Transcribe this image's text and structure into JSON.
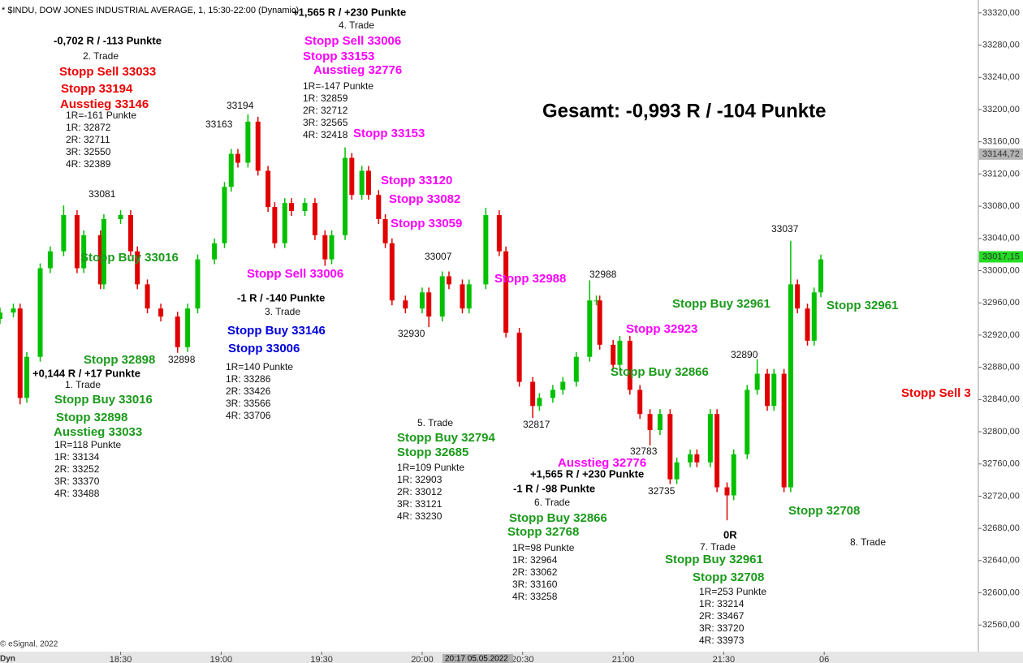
{
  "header": "* $INDU, DOW JONES INDUSTRIAL AVERAGE, 1, 15:30-22:00 (Dynamic)",
  "summary": "Gesamt: -0,993 R / -104 Punkte",
  "copyright": "© eSignal, 2022",
  "toolbar_label": "Dyn",
  "crosshair_label": "20:17 05.05.2022",
  "chart_data": {
    "type": "candlestick",
    "up_color": "#00c000",
    "down_color": "#e00000",
    "grid": false,
    "xlim": [
      1074,
      1366
    ],
    "xticks": [
      {
        "value": 1110,
        "label": "18:30"
      },
      {
        "value": 1140,
        "label": "19:00"
      },
      {
        "value": 1170,
        "label": "19:30"
      },
      {
        "value": 1200,
        "label": "20:00"
      },
      {
        "value": 1230,
        "label": "20:30"
      },
      {
        "value": 1260,
        "label": "21:00"
      },
      {
        "value": 1290,
        "label": "21:30"
      },
      {
        "value": 1320,
        "label": "06"
      }
    ],
    "ylim": [
      32527,
      33336
    ],
    "yticks": [
      {
        "value": 33320,
        "label": "33320,00"
      },
      {
        "value": 33280,
        "label": "33280,00"
      },
      {
        "value": 33240,
        "label": "33240,00"
      },
      {
        "value": 33200,
        "label": "33200,00"
      },
      {
        "value": 33160,
        "label": "33160,00"
      },
      {
        "value": 33120,
        "label": "33120,00"
      },
      {
        "value": 33080,
        "label": "33080,00"
      },
      {
        "value": 33040,
        "label": "33040,00"
      },
      {
        "value": 33000,
        "label": "33000,00"
      },
      {
        "value": 32960,
        "label": "32960,00"
      },
      {
        "value": 32920,
        "label": "32920,00"
      },
      {
        "value": 32880,
        "label": "32880,00"
      },
      {
        "value": 32840,
        "label": "32840,00"
      },
      {
        "value": 32800,
        "label": "32800,00"
      },
      {
        "value": 32760,
        "label": "32760,00"
      },
      {
        "value": 32720,
        "label": "32720,00"
      },
      {
        "value": 32680,
        "label": "32680,00"
      },
      {
        "value": 32640,
        "label": "32640,00"
      },
      {
        "value": 32600,
        "label": "32600,00"
      },
      {
        "value": 32560,
        "label": "32560,00"
      }
    ],
    "price_markers": [
      {
        "value": 33144.72,
        "label": "33144,72",
        "color": "#b4b4b4"
      },
      {
        "value": 33017.15,
        "label": "33017,15",
        "color": "#22dd22"
      }
    ],
    "x": [
      1074,
      1078,
      1080,
      1082,
      1086,
      1089,
      1093,
      1097,
      1099,
      1104,
      1105,
      1110,
      1113,
      1115,
      1118,
      1122,
      1127,
      1130,
      1133,
      1138,
      1141,
      1143,
      1145,
      1148,
      1151,
      1154,
      1156,
      1159,
      1161,
      1165,
      1168,
      1171,
      1173,
      1177,
      1179,
      1182,
      1184,
      1187,
      1189,
      1191,
      1195,
      1200,
      1202,
      1206,
      1208,
      1212,
      1214,
      1219,
      1223,
      1225,
      1229,
      1233,
      1235,
      1239,
      1242,
      1246,
      1250,
      1252,
      1253,
      1257,
      1259,
      1262,
      1265,
      1268,
      1271,
      1274,
      1276,
      1280,
      1282,
      1286,
      1288,
      1291,
      1293,
      1297,
      1300,
      1303,
      1305,
      1308,
      1310,
      1312,
      1315,
      1317,
      1319
    ],
    "open": [
      32940,
      32948,
      32953,
      32842,
      32893,
      33003,
      33024,
      33069,
      33003,
      33044,
      32983,
      33064,
      33069,
      33024,
      32983,
      32953,
      32943,
      32905,
      32953,
      33014,
      33034,
      33104,
      33145,
      33134,
      33185,
      33124,
      33079,
      33034,
      33084,
      33074,
      33084,
      33044,
      33014,
      33044,
      33140,
      33094,
      33124,
      33094,
      33064,
      33034,
      32963,
      32953,
      32973,
      32943,
      32993,
      32983,
      32953,
      32983,
      33069,
      33024,
      32923,
      32862,
      32832,
      32842,
      32852,
      32862,
      32893,
      32963,
      32963,
      32908,
      32883,
      32913,
      32852,
      32822,
      32802,
      32822,
      32741,
      32762,
      32772,
      32762,
      32822,
      32731,
      32721,
      32772,
      32852,
      32872,
      32832,
      32872,
      32731,
      32983,
      32953,
      32913,
      32973
    ],
    "high": [
      32954,
      32959,
      32959,
      32899,
      33009,
      33030,
      33081,
      33075,
      33050,
      33050,
      33070,
      33075,
      33075,
      33030,
      32989,
      32959,
      32949,
      32959,
      33020,
      33040,
      33110,
      33151,
      33151,
      33194,
      33191,
      33130,
      33085,
      33090,
      33090,
      33090,
      33090,
      33050,
      33050,
      33153,
      33146,
      33130,
      33130,
      33100,
      33070,
      33040,
      32969,
      32979,
      32979,
      32999,
      32999,
      32989,
      32989,
      33078,
      33075,
      33030,
      32929,
      32868,
      32848,
      32858,
      32868,
      32899,
      32988,
      32969,
      32969,
      32914,
      32919,
      32919,
      32858,
      32828,
      32828,
      32828,
      32768,
      32778,
      32778,
      32828,
      32828,
      32737,
      32778,
      32858,
      32890,
      32878,
      32878,
      32878,
      33037,
      32989,
      32959,
      32979,
      33020
    ],
    "low": [
      32934,
      32942,
      32834,
      32836,
      32887,
      32997,
      33018,
      32997,
      32997,
      32977,
      32977,
      33058,
      33018,
      32977,
      32947,
      32937,
      32898,
      32899,
      32947,
      33008,
      33028,
      33098,
      33128,
      33128,
      33118,
      33073,
      33028,
      33028,
      33068,
      33068,
      33038,
      33006,
      33008,
      33038,
      33088,
      33088,
      33088,
      33058,
      33028,
      32957,
      32947,
      32947,
      32930,
      32937,
      32977,
      32947,
      32947,
      32977,
      33018,
      32917,
      32856,
      32817,
      32826,
      32836,
      32846,
      32856,
      32887,
      32957,
      32902,
      32877,
      32877,
      32846,
      32816,
      32783,
      32796,
      32735,
      32735,
      32756,
      32756,
      32756,
      32725,
      32690,
      32715,
      32766,
      32846,
      32826,
      32826,
      32725,
      32725,
      32947,
      32907,
      32907,
      32967
    ],
    "close": [
      32948,
      32953,
      32842,
      32893,
      33003,
      33024,
      33069,
      33003,
      33044,
      32983,
      33064,
      33069,
      33024,
      32983,
      32953,
      32943,
      32905,
      32953,
      33014,
      33034,
      33104,
      33145,
      33134,
      33185,
      33124,
      33079,
      33034,
      33084,
      33074,
      33084,
      33044,
      33014,
      33044,
      33140,
      33094,
      33124,
      33094,
      33064,
      33034,
      32963,
      32953,
      32973,
      32943,
      32993,
      32983,
      32953,
      32983,
      33069,
      33024,
      32923,
      32862,
      32832,
      32842,
      32852,
      32862,
      32893,
      32963,
      32963,
      32908,
      32883,
      32913,
      32852,
      32822,
      32802,
      32822,
      32741,
      32762,
      32772,
      32762,
      32822,
      32731,
      32721,
      32772,
      32852,
      32872,
      32832,
      32872,
      32731,
      32983,
      32953,
      32913,
      32973,
      33014
    ]
  },
  "annotations": [
    "-0,702 R / -113 Punkte",
    "2. Trade",
    "Stopp Sell 33033",
    "Stopp 33194",
    "Ausstieg 33146",
    "1R=-161 Punkte",
    "1R: 32872",
    "2R: 32711",
    "3R: 32550",
    "4R: 32389",
    "+1,565 R / +230 Punkte",
    "4. Trade",
    "Stopp Sell 33006",
    "Stopp 33153",
    "Ausstieg 32776",
    "1R=-147 Punkte",
    "1R: 32859",
    "2R: 32712",
    "3R: 32565",
    "4R: 32418",
    "Stopp 33153",
    "Stopp 33120",
    "Stopp 33082",
    "Stopp 33059",
    "33194",
    "33163",
    "33081",
    "33007",
    "32988",
    "32930",
    "32898",
    "32817",
    "32783",
    "32735",
    "32890",
    "33037",
    "Stopp Buy 33016",
    "Stopp 32898",
    "+0,144 R / +17 Punkte",
    "1. Trade",
    "Stopp Buy 33016",
    "Stopp 32898",
    "Ausstieg 33033",
    "1R=118 Punkte",
    "1R: 33134",
    "2R: 33252",
    "3R: 33370",
    "4R: 33488",
    "Stopp Sell 33006",
    "-1 R / -140 Punkte",
    "3. Trade",
    "Stopp Buy 33146",
    "Stopp 33006",
    "1R=140 Punkte",
    "1R: 33286",
    "2R: 33426",
    "3R: 33566",
    "4R: 33706",
    "5. Trade",
    "Stopp Buy 32794",
    "Stopp 32685",
    "1R=109 Punkte",
    "1R: 32903",
    "2R: 33012",
    "3R: 33121",
    "4R: 33230",
    "Stopp 32988",
    "Stopp 32923",
    "Stopp Buy 32866",
    "Ausstieg 32776",
    "+1,565 R / +230 Punkte",
    "-1 R / -98 Punkte",
    "6. Trade",
    "Stopp Buy 32866",
    "Stopp 32768",
    "1R=98 Punkte",
    "1R: 32964",
    "2R: 33062",
    "3R: 33160",
    "4R: 33258",
    "0R",
    "7. Trade",
    "Stopp Buy 32961",
    "Stopp 32708",
    "1R=253 Punkte",
    "1R: 33214",
    "2R: 33467",
    "3R: 33720",
    "4R: 33973",
    "Stopp Buy 32961",
    "Stopp 32961",
    "Stopp 32708",
    "8. Trade",
    "Stopp Sell 3"
  ]
}
